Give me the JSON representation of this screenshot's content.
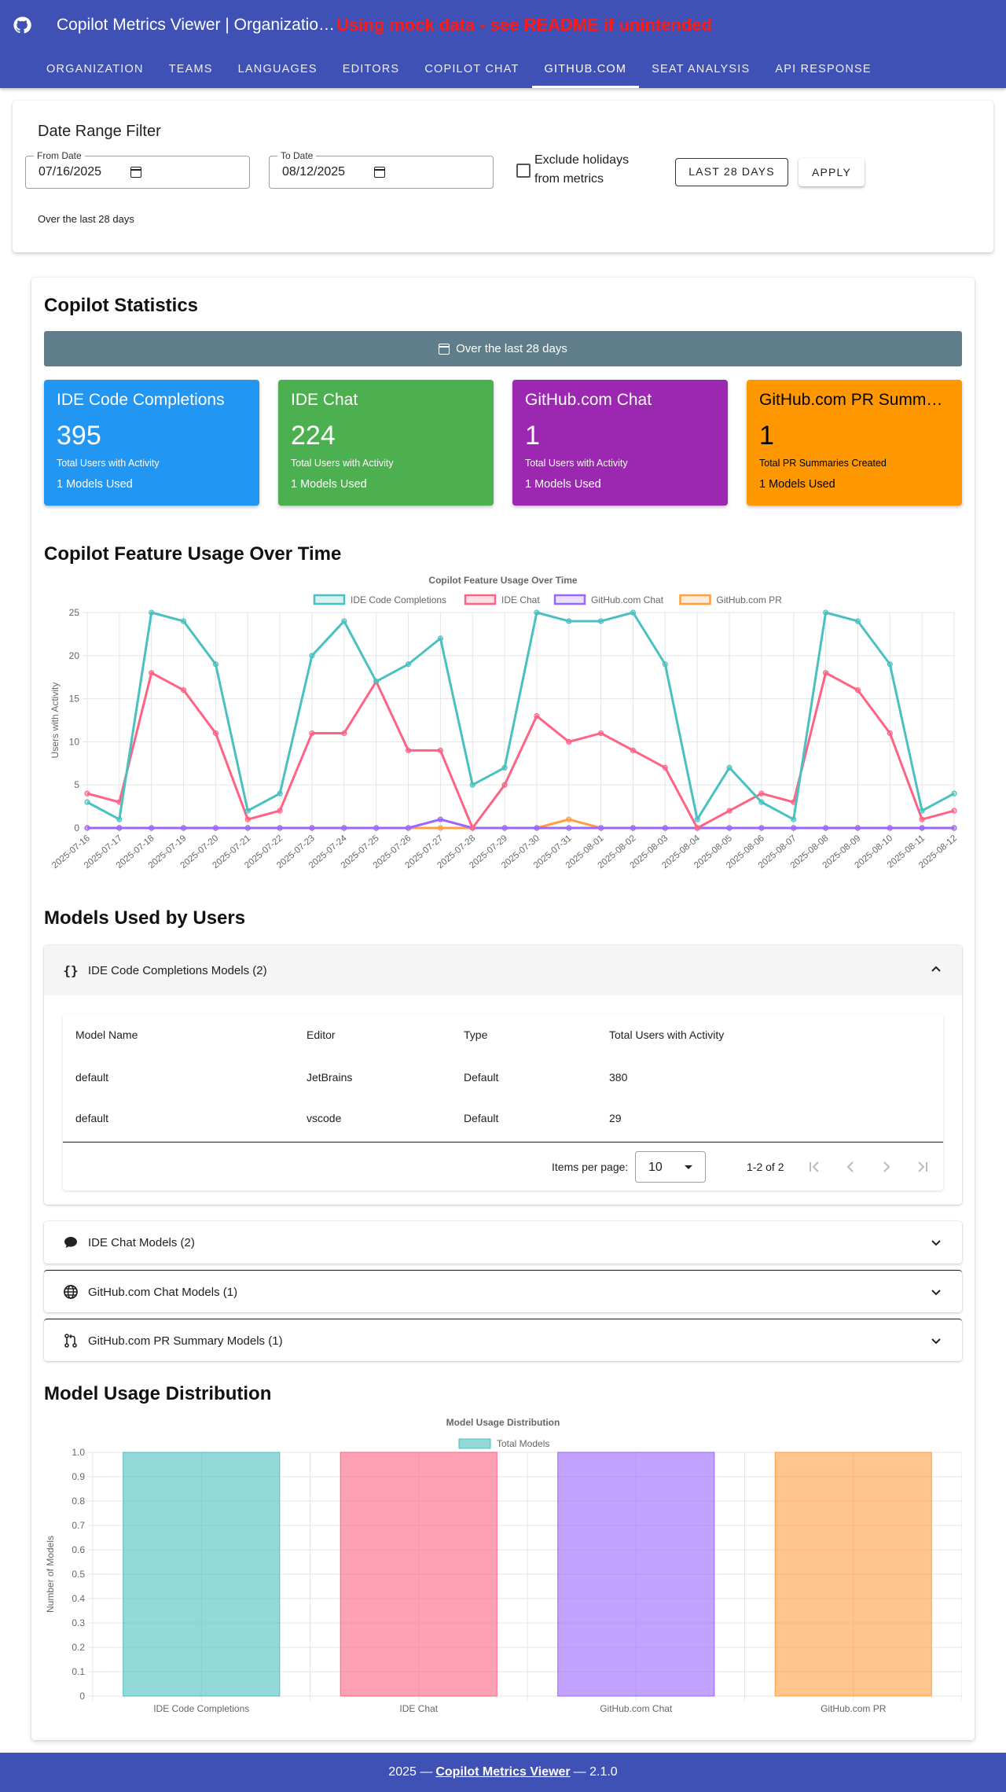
{
  "header": {
    "title": "Copilot Metrics Viewer | Organizatio…",
    "warning": "Using mock data - see README if unintended",
    "tabs": [
      "ORGANIZATION",
      "TEAMS",
      "LANGUAGES",
      "EDITORS",
      "COPILOT CHAT",
      "GITHUB.COM",
      "SEAT ANALYSIS",
      "API RESPONSE"
    ],
    "active_tab": "GITHUB.COM"
  },
  "filter": {
    "title": "Date Range Filter",
    "from_label": "From Date",
    "from_value": "07/16/2025",
    "to_label": "To Date",
    "to_value": "08/12/2025",
    "exclude_label": "Exclude holidays from metrics",
    "last28_label": "LAST 28 DAYS",
    "apply_label": "APPLY",
    "note": "Over the last 28 days"
  },
  "stats": {
    "title": "Copilot Statistics",
    "range_label": "Over the last 28 days",
    "cards": [
      {
        "title": "IDE Code Completions",
        "value": "395",
        "sub": "Total Users with Activity",
        "models": "1 Models Used",
        "color": "#2196f3"
      },
      {
        "title": "IDE Chat",
        "value": "224",
        "sub": "Total Users with Activity",
        "models": "1 Models Used",
        "color": "#4caf50"
      },
      {
        "title": "GitHub.com Chat",
        "value": "1",
        "sub": "Total Users with Activity",
        "models": "1 Models Used",
        "color": "#9c27b0"
      },
      {
        "title": "GitHub.com PR Summa…",
        "value": "1",
        "sub": "Total PR Summaries Created",
        "models": "1 Models Used",
        "color": "#ff9800"
      }
    ]
  },
  "usage": {
    "heading": "Copilot Feature Usage Over Time"
  },
  "models": {
    "heading": "Models Used by Users",
    "panels": [
      {
        "label": "IDE Code Completions Models (2)",
        "icon": "curly-braces-icon",
        "open": true
      },
      {
        "label": "IDE Chat Models (2)",
        "icon": "chat-bubble-icon",
        "open": false
      },
      {
        "label": "GitHub.com Chat Models (1)",
        "icon": "globe-icon",
        "open": false
      },
      {
        "label": "GitHub.com PR Summary Models (1)",
        "icon": "pull-request-icon",
        "open": false
      }
    ],
    "table": {
      "columns": [
        "Model Name",
        "Editor",
        "Type",
        "Total Users with Activity"
      ],
      "rows": [
        [
          "default",
          "JetBrains",
          "Default",
          "380"
        ],
        [
          "default",
          "vscode",
          "Default",
          "29"
        ]
      ],
      "items_per_page_label": "Items per page:",
      "items_per_page": "10",
      "range": "1-2 of 2"
    }
  },
  "distribution": {
    "heading": "Model Usage Distribution"
  },
  "footer": {
    "prefix": "2025 —",
    "link": "Copilot Metrics Viewer",
    "suffix": "— 2.1.0"
  },
  "chart_data": [
    {
      "type": "line",
      "title": "Copilot Feature Usage Over Time",
      "ylabel": "Users with Activity",
      "xlabel": "",
      "ylim": [
        0,
        25
      ],
      "legend": "top",
      "grid": true,
      "x": [
        "2025-07-16",
        "2025-07-17",
        "2025-07-18",
        "2025-07-19",
        "2025-07-20",
        "2025-07-21",
        "2025-07-22",
        "2025-07-23",
        "2025-07-24",
        "2025-07-25",
        "2025-07-26",
        "2025-07-27",
        "2025-07-28",
        "2025-07-29",
        "2025-07-30",
        "2025-07-31",
        "2025-08-01",
        "2025-08-02",
        "2025-08-03",
        "2025-08-04",
        "2025-08-05",
        "2025-08-06",
        "2025-08-07",
        "2025-08-08",
        "2025-08-09",
        "2025-08-10",
        "2025-08-11",
        "2025-08-12"
      ],
      "series": [
        {
          "name": "IDE Code Completions",
          "color": "#4bc0c0",
          "values": [
            3,
            1,
            25,
            24,
            19,
            2,
            4,
            20,
            24,
            17,
            19,
            22,
            5,
            7,
            25,
            24,
            24,
            25,
            19,
            1,
            7,
            3,
            1,
            25,
            24,
            19,
            2,
            4
          ]
        },
        {
          "name": "IDE Chat",
          "color": "#ff6384",
          "values": [
            4,
            3,
            18,
            16,
            11,
            1,
            2,
            11,
            11,
            17,
            9,
            9,
            0,
            5,
            13,
            10,
            11,
            9,
            7,
            0,
            2,
            4,
            3,
            18,
            16,
            11,
            1,
            2
          ]
        },
        {
          "name": "GitHub.com Chat",
          "color": "#9966ff",
          "values": [
            0,
            0,
            0,
            0,
            0,
            0,
            0,
            0,
            0,
            0,
            0,
            1,
            0,
            0,
            0,
            0,
            0,
            0,
            0,
            0,
            0,
            0,
            0,
            0,
            0,
            0,
            0,
            0
          ]
        },
        {
          "name": "GitHub.com PR",
          "color": "#ff9f40",
          "values": [
            0,
            0,
            0,
            0,
            0,
            0,
            0,
            0,
            0,
            0,
            0,
            0,
            0,
            0,
            0,
            1,
            0,
            0,
            0,
            0,
            0,
            0,
            0,
            0,
            0,
            0,
            0,
            0
          ]
        }
      ]
    },
    {
      "type": "bar",
      "title": "Model Usage Distribution",
      "ylabel": "Number of Models",
      "xlabel": "",
      "ylim": [
        0,
        1
      ],
      "legend": "top",
      "grid": true,
      "categories": [
        "IDE Code Completions",
        "IDE Chat",
        "GitHub.com Chat",
        "GitHub.com PR"
      ],
      "series": [
        {
          "name": "Total Models",
          "values": [
            1,
            1,
            1,
            1
          ]
        }
      ],
      "colors": [
        "#4bc0c0",
        "#ff6384",
        "#9966ff",
        "#ff9f40"
      ]
    }
  ]
}
